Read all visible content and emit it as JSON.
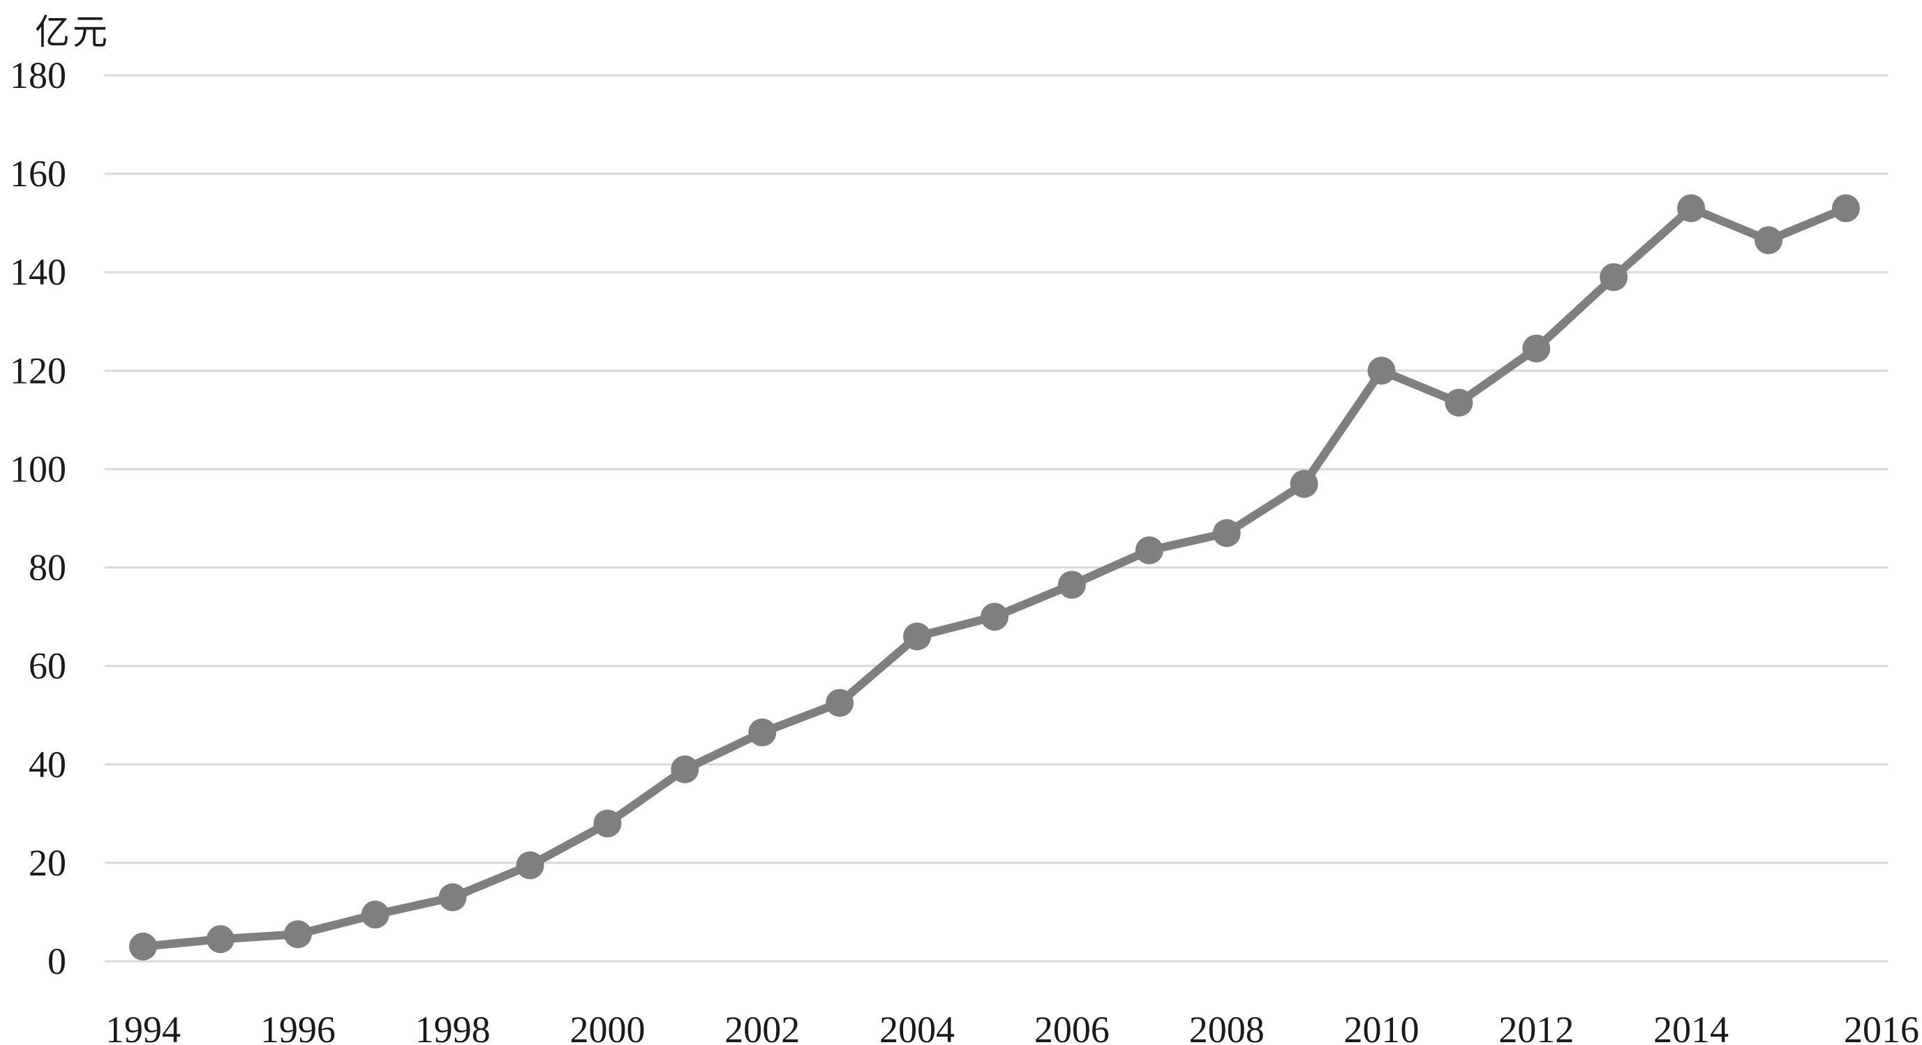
{
  "chart_data": {
    "type": "line",
    "title": "",
    "xlabel": "",
    "ylabel": "亿元",
    "ylim": [
      0,
      180
    ],
    "yticks": [
      "0",
      "20",
      "40",
      "60",
      "80",
      "100",
      "120",
      "140",
      "160",
      "180"
    ],
    "x_tick_labels": [
      "1994",
      "1996",
      "1998",
      "2000",
      "2002",
      "2004",
      "2006",
      "2008",
      "2010",
      "2012",
      "2014",
      "2016"
    ],
    "x": [
      1994,
      1995,
      1996,
      1997,
      1998,
      1999,
      2000,
      2001,
      2002,
      2003,
      2004,
      2005,
      2006,
      2007,
      2008,
      2009,
      2010,
      2011,
      2012,
      2013,
      2014,
      2015,
      2016
    ],
    "series": [
      {
        "values": [
          3,
          4.5,
          5.5,
          9.5,
          13,
          19.5,
          28,
          39,
          46.5,
          52.5,
          66,
          70,
          76.5,
          83.5,
          87,
          97,
          120,
          113.5,
          124.5,
          139,
          153,
          146.5,
          153
        ]
      }
    ],
    "grid": true,
    "legend": "none",
    "line_color": "#7f7f7f"
  }
}
